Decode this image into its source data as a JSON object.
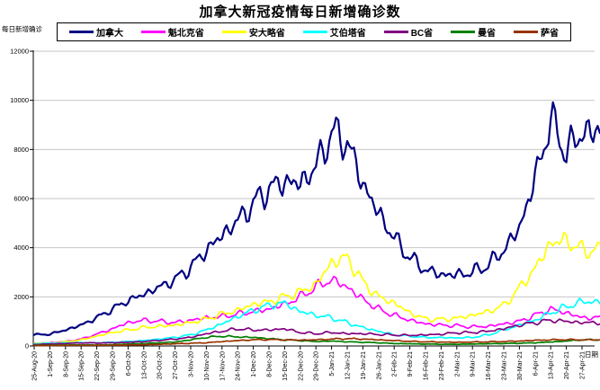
{
  "title": "加拿大新冠疫情每日新增确诊数",
  "colors": {
    "axis": "#000000",
    "grid": "#c6c6c6",
    "background": "#ffffff",
    "text": "#000000"
  },
  "chart_data": {
    "type": "line",
    "title": "加拿大新冠疫情每日新增确诊数",
    "ylabel": "每日新增确诊",
    "xlabel": "日期",
    "ylim": [
      0,
      12000
    ],
    "y_ticks": [
      0,
      2000,
      4000,
      6000,
      8000,
      10000,
      12000
    ],
    "grid": "horizontal",
    "legend_position": "top",
    "categories": [
      "25-Aug-20",
      "1-Sep-20",
      "8-Sep-20",
      "15-Sep-20",
      "22-Sep-20",
      "29-Sep-20",
      "6-Oct-20",
      "13-Oct-20",
      "20-Oct-20",
      "27-Oct-20",
      "3-Nov-20",
      "10-Nov-20",
      "17-Nov-20",
      "24-Nov-20",
      "1-Dec-20",
      "8-Dec-20",
      "15-Dec-20",
      "22-Dec-20",
      "29-Dec-20",
      "5-Jan-21",
      "12-Jan-21",
      "19-Jan-21",
      "26-Jan-21",
      "2-Feb-21",
      "9-Feb-21",
      "16-Feb-21",
      "23-Feb-21",
      "2-Mar-21",
      "9-Mar-21",
      "16-Mar-21",
      "23-Mar-21",
      "30-Mar-21",
      "6-Apr-21",
      "13-Apr-21",
      "20-Apr-21",
      "27-Apr-21"
    ],
    "series": [
      {
        "id": "canada",
        "name": "加拿大",
        "color": "#000080",
        "values": [
          450,
          480,
          650,
          850,
          1150,
          1500,
          1850,
          2100,
          2400,
          2700,
          3200,
          3900,
          4500,
          5100,
          5800,
          6400,
          6700,
          6600,
          7300,
          8700,
          8300,
          6600,
          5400,
          4400,
          3600,
          3100,
          2900,
          2900,
          3000,
          3300,
          3900,
          4800,
          6800,
          9200,
          7900,
          8700
        ]
      },
      {
        "id": "quebec",
        "name": "魁北克省",
        "color": "#ff00ff",
        "values": [
          100,
          130,
          180,
          280,
          480,
          700,
          950,
          1050,
          1000,
          950,
          1050,
          1150,
          1200,
          1300,
          1400,
          1500,
          1700,
          2000,
          2400,
          2700,
          2400,
          1900,
          1500,
          1250,
          1050,
          900,
          850,
          820,
          780,
          800,
          900,
          1000,
          1250,
          1500,
          1350,
          1150
        ]
      },
      {
        "id": "ontario",
        "name": "安大略省",
        "color": "#ffff00",
        "values": [
          110,
          120,
          170,
          250,
          400,
          550,
          650,
          750,
          800,
          850,
          950,
          1100,
          1300,
          1450,
          1700,
          1800,
          2000,
          2200,
          2500,
          3400,
          3600,
          2600,
          2000,
          1750,
          1350,
          1100,
          1080,
          1130,
          1250,
          1400,
          1650,
          2350,
          3150,
          4200,
          4300,
          3900
        ]
      },
      {
        "id": "alberta",
        "name": "艾伯塔省",
        "color": "#00ffff",
        "values": [
          90,
          110,
          130,
          140,
          130,
          150,
          180,
          220,
          280,
          350,
          450,
          650,
          900,
          1200,
          1450,
          1650,
          1750,
          1400,
          1250,
          1150,
          950,
          750,
          600,
          450,
          400,
          350,
          340,
          330,
          350,
          450,
          650,
          850,
          1050,
          1350,
          1600,
          1800
        ]
      },
      {
        "id": "bc",
        "name": "BC省",
        "color": "#800080",
        "values": [
          60,
          80,
          100,
          130,
          120,
          130,
          150,
          180,
          230,
          280,
          350,
          500,
          600,
          700,
          650,
          650,
          700,
          550,
          500,
          550,
          500,
          500,
          470,
          450,
          430,
          450,
          480,
          540,
          550,
          600,
          700,
          850,
          950,
          1050,
          1000,
          950
        ]
      },
      {
        "id": "manitoba",
        "name": "曼省",
        "color": "#008000",
        "values": [
          30,
          35,
          40,
          45,
          40,
          50,
          80,
          100,
          130,
          160,
          250,
          350,
          400,
          370,
          350,
          300,
          250,
          220,
          180,
          200,
          170,
          150,
          130,
          100,
          90,
          80,
          70,
          70,
          80,
          90,
          100,
          110,
          130,
          160,
          200,
          250
        ]
      },
      {
        "id": "saskatchewan",
        "name": "萨省",
        "color": "#993300",
        "values": [
          15,
          20,
          25,
          25,
          30,
          30,
          40,
          50,
          70,
          90,
          110,
          130,
          180,
          220,
          250,
          260,
          250,
          240,
          250,
          280,
          300,
          280,
          250,
          220,
          190,
          170,
          160,
          150,
          160,
          170,
          180,
          200,
          230,
          250,
          260,
          250
        ]
      }
    ]
  }
}
